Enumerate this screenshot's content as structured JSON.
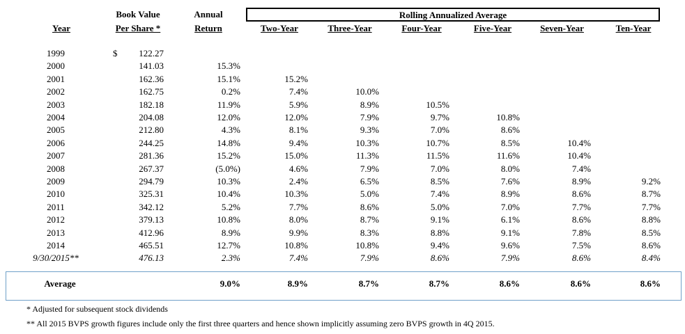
{
  "headers": {
    "year": "Year",
    "book_value_l1": "Book Value",
    "book_value_l2": "Per Share *",
    "annual_l1": "Annual",
    "annual_l2": "Return",
    "rolling_title": "Rolling Annualized Average",
    "two_year": "Two-Year",
    "three_year": "Three-Year",
    "four_year": "Four-Year",
    "five_year": "Five-Year",
    "seven_year": "Seven-Year",
    "ten_year": "Ten-Year"
  },
  "dollar_sign": "$",
  "rows": [
    {
      "year": "1999",
      "bv": "122.27",
      "ar": "",
      "y2": "",
      "y3": "",
      "y4": "",
      "y5": "",
      "y7": "",
      "y10": ""
    },
    {
      "year": "2000",
      "bv": "141.03",
      "ar": "15.3%",
      "y2": "",
      "y3": "",
      "y4": "",
      "y5": "",
      "y7": "",
      "y10": ""
    },
    {
      "year": "2001",
      "bv": "162.36",
      "ar": "15.1%",
      "y2": "15.2%",
      "y3": "",
      "y4": "",
      "y5": "",
      "y7": "",
      "y10": ""
    },
    {
      "year": "2002",
      "bv": "162.75",
      "ar": "0.2%",
      "y2": "7.4%",
      "y3": "10.0%",
      "y4": "",
      "y5": "",
      "y7": "",
      "y10": ""
    },
    {
      "year": "2003",
      "bv": "182.18",
      "ar": "11.9%",
      "y2": "5.9%",
      "y3": "8.9%",
      "y4": "10.5%",
      "y5": "",
      "y7": "",
      "y10": ""
    },
    {
      "year": "2004",
      "bv": "204.08",
      "ar": "12.0%",
      "y2": "12.0%",
      "y3": "7.9%",
      "y4": "9.7%",
      "y5": "10.8%",
      "y7": "",
      "y10": ""
    },
    {
      "year": "2005",
      "bv": "212.80",
      "ar": "4.3%",
      "y2": "8.1%",
      "y3": "9.3%",
      "y4": "7.0%",
      "y5": "8.6%",
      "y7": "",
      "y10": ""
    },
    {
      "year": "2006",
      "bv": "244.25",
      "ar": "14.8%",
      "y2": "9.4%",
      "y3": "10.3%",
      "y4": "10.7%",
      "y5": "8.5%",
      "y7": "10.4%",
      "y10": ""
    },
    {
      "year": "2007",
      "bv": "281.36",
      "ar": "15.2%",
      "y2": "15.0%",
      "y3": "11.3%",
      "y4": "11.5%",
      "y5": "11.6%",
      "y7": "10.4%",
      "y10": ""
    },
    {
      "year": "2008",
      "bv": "267.37",
      "ar": "(5.0%)",
      "y2": "4.6%",
      "y3": "7.9%",
      "y4": "7.0%",
      "y5": "8.0%",
      "y7": "7.4%",
      "y10": ""
    },
    {
      "year": "2009",
      "bv": "294.79",
      "ar": "10.3%",
      "y2": "2.4%",
      "y3": "6.5%",
      "y4": "8.5%",
      "y5": "7.6%",
      "y7": "8.9%",
      "y10": "9.2%"
    },
    {
      "year": "2010",
      "bv": "325.31",
      "ar": "10.4%",
      "y2": "10.3%",
      "y3": "5.0%",
      "y4": "7.4%",
      "y5": "8.9%",
      "y7": "8.6%",
      "y10": "8.7%"
    },
    {
      "year": "2011",
      "bv": "342.12",
      "ar": "5.2%",
      "y2": "7.7%",
      "y3": "8.6%",
      "y4": "5.0%",
      "y5": "7.0%",
      "y7": "7.7%",
      "y10": "7.7%"
    },
    {
      "year": "2012",
      "bv": "379.13",
      "ar": "10.8%",
      "y2": "8.0%",
      "y3": "8.7%",
      "y4": "9.1%",
      "y5": "6.1%",
      "y7": "8.6%",
      "y10": "8.8%"
    },
    {
      "year": "2013",
      "bv": "412.96",
      "ar": "8.9%",
      "y2": "9.9%",
      "y3": "8.3%",
      "y4": "8.8%",
      "y5": "9.1%",
      "y7": "7.8%",
      "y10": "8.5%"
    },
    {
      "year": "2014",
      "bv": "465.51",
      "ar": "12.7%",
      "y2": "10.8%",
      "y3": "10.8%",
      "y4": "9.4%",
      "y5": "9.6%",
      "y7": "7.5%",
      "y10": "8.6%"
    },
    {
      "year": "9/30/2015**",
      "bv": "476.13",
      "ar": "2.3%",
      "y2": "7.4%",
      "y3": "7.9%",
      "y4": "8.6%",
      "y5": "7.9%",
      "y7": "8.6%",
      "y10": "8.4%"
    }
  ],
  "average": {
    "label": "Average",
    "ar": "9.0%",
    "y2": "8.9%",
    "y3": "8.7%",
    "y4": "8.7%",
    "y5": "8.6%",
    "y7": "8.6%",
    "y10": "8.6%"
  },
  "notes": {
    "n1": "* Adjusted for subsequent stock dividends",
    "n2": "** All 2015 BVPS growth figures include only the first three quarters and hence shown implicitly assuming zero BVPS growth in 4Q 2015."
  }
}
